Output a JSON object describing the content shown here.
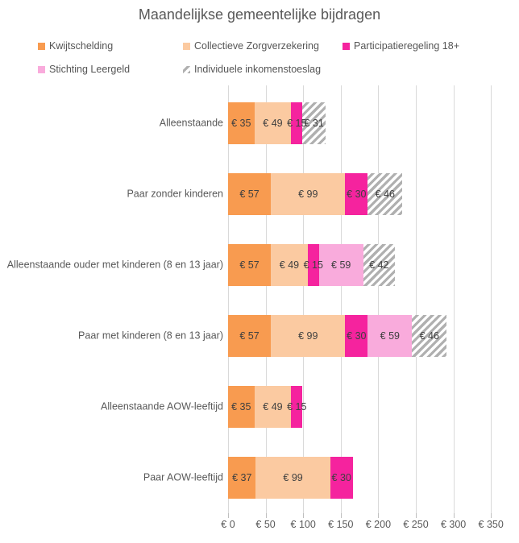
{
  "chart_data": {
    "type": "bar",
    "orientation": "horizontal",
    "stacked": true,
    "title": "Maandelijkse gemeentelijke bijdragen",
    "categories": [
      "Alleenstaande",
      "Paar zonder kinderen",
      "Alleenstaande ouder met kinderen (8 en 13 jaar)",
      "Paar met kinderen (8 en 13 jaar)",
      "Alleenstaande AOW-leeftijd",
      "Paar AOW-leeftijd"
    ],
    "series": [
      {
        "name": "Kwijtschelding",
        "color": "#f89b50",
        "pattern": "solid",
        "values": [
          35,
          57,
          57,
          57,
          35,
          37
        ]
      },
      {
        "name": "Collectieve Zorgverzekering",
        "color": "#fbcaa1",
        "pattern": "solid",
        "values": [
          49,
          99,
          49,
          99,
          49,
          99
        ]
      },
      {
        "name": "Participatieregeling 18+",
        "color": "#f5239e",
        "pattern": "solid",
        "values": [
          15,
          30,
          15,
          30,
          15,
          30
        ]
      },
      {
        "name": "Stichting Leergeld",
        "color": "#f9abdc",
        "pattern": "solid",
        "values": [
          0,
          0,
          59,
          59,
          0,
          0
        ]
      },
      {
        "name": "Individuele inkomenstoeslag",
        "color": "#b0b0b0",
        "pattern": "diagonal-hatch",
        "values": [
          31,
          46,
          42,
          46,
          0,
          0
        ]
      }
    ],
    "data_label_format": "€ {v}",
    "x_ticks": [
      "€ 0",
      "€ 50",
      "€ 100",
      "€ 150",
      "€ 200",
      "€ 250",
      "€ 300",
      "€ 350"
    ],
    "x_tick_values": [
      0,
      50,
      100,
      150,
      200,
      250,
      300,
      350
    ],
    "xlim": [
      0,
      350
    ],
    "grid": true,
    "legend_position": "top",
    "colors": {
      "title_text": "#595959",
      "axis_text": "#595959",
      "data_label_text": "#404040",
      "gridline": "#d9d9d9",
      "hatch_stripe": "#b0b0b0",
      "hatch_background": "#ffffff"
    }
  }
}
